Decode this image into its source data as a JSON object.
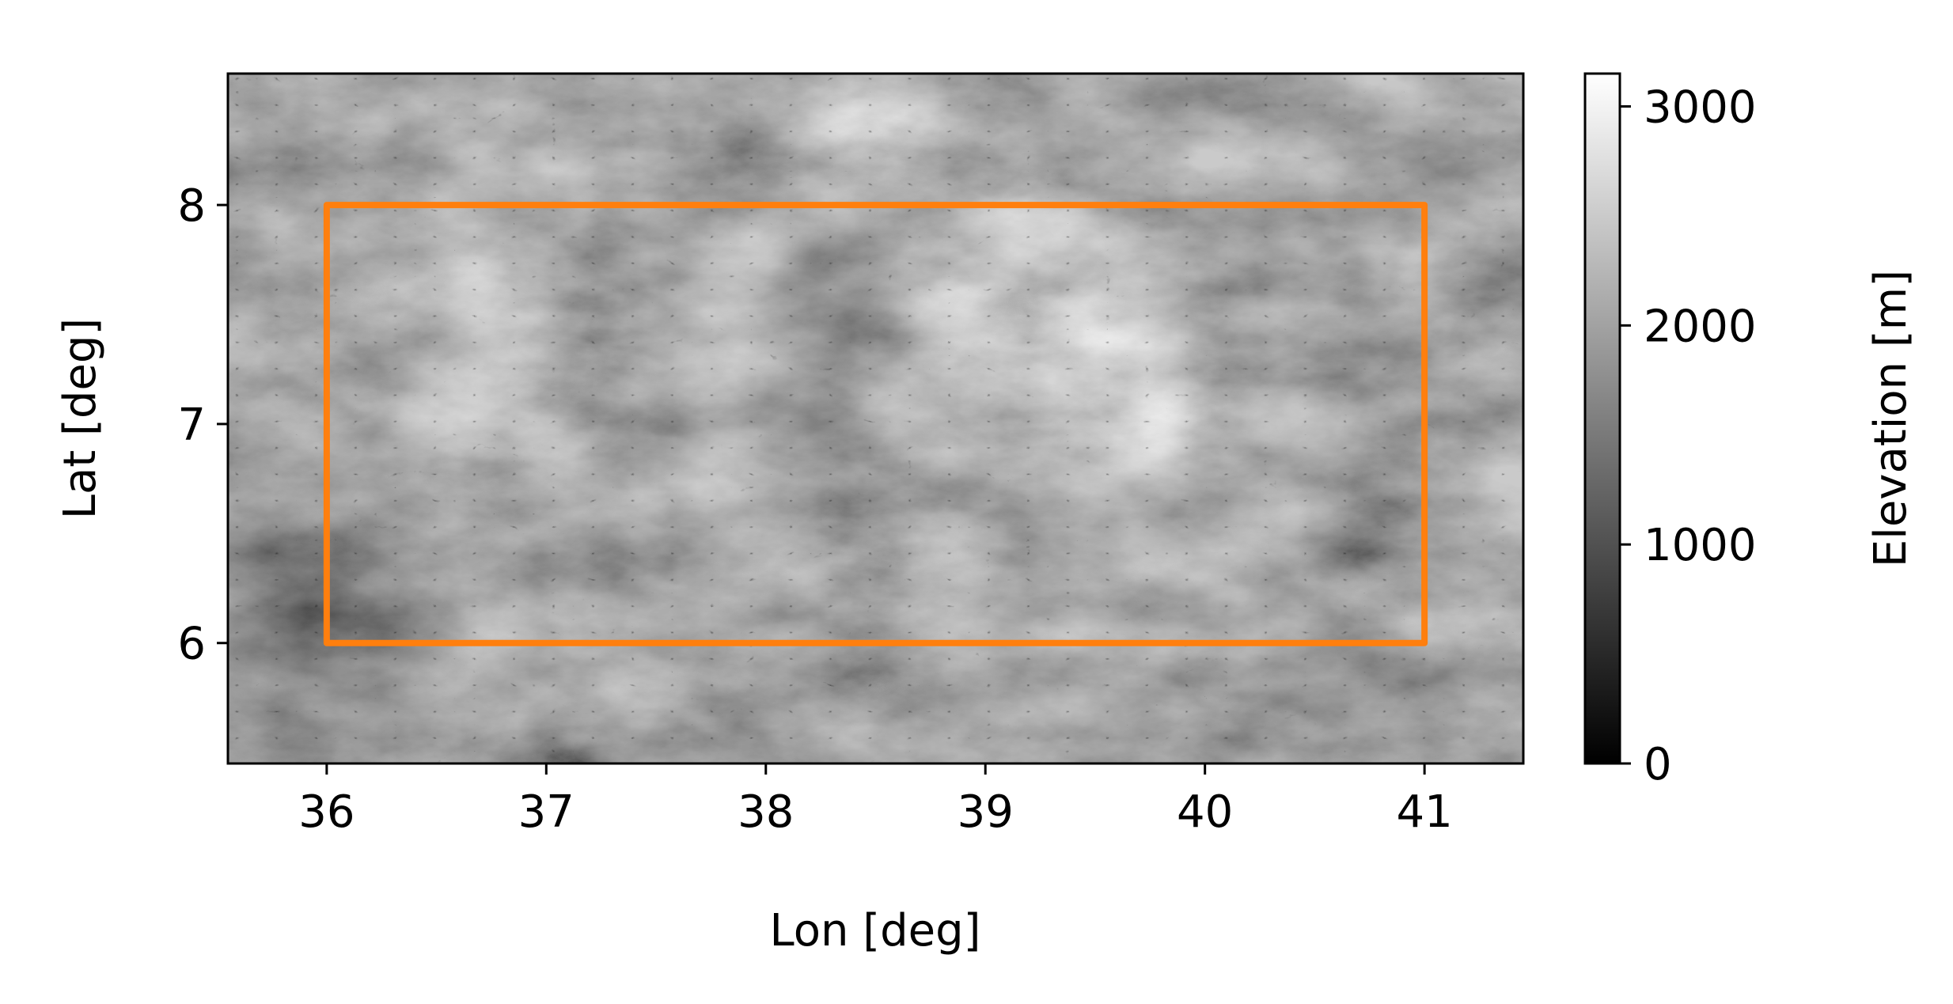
{
  "map": {
    "xlabel": "Lon [deg]",
    "ylabel": "Lat [deg]",
    "xlim": [
      35.55,
      41.45
    ],
    "ylim": [
      5.45,
      8.6
    ],
    "xticks": [
      {
        "value": 36,
        "label": "36"
      },
      {
        "value": 37,
        "label": "37"
      },
      {
        "value": 38,
        "label": "38"
      },
      {
        "value": 39,
        "label": "39"
      },
      {
        "value": 40,
        "label": "40"
      },
      {
        "value": 41,
        "label": "41"
      }
    ],
    "yticks": [
      {
        "value": 6,
        "label": "6"
      },
      {
        "value": 7,
        "label": "7"
      },
      {
        "value": 8,
        "label": "8"
      }
    ],
    "colormap": "grayscale (black to white)",
    "region_box": {
      "lon_min": 36,
      "lon_max": 41,
      "lat_min": 6,
      "lat_max": 8,
      "color": "#ff7f0e"
    }
  },
  "colorbar": {
    "label": "Elevation [m]",
    "vmin": 0,
    "vmax": 3150,
    "ticks": [
      {
        "value": 0,
        "label": "0"
      },
      {
        "value": 1000,
        "label": "1000"
      },
      {
        "value": 2000,
        "label": "2000"
      },
      {
        "value": 3000,
        "label": "3000"
      }
    ]
  }
}
